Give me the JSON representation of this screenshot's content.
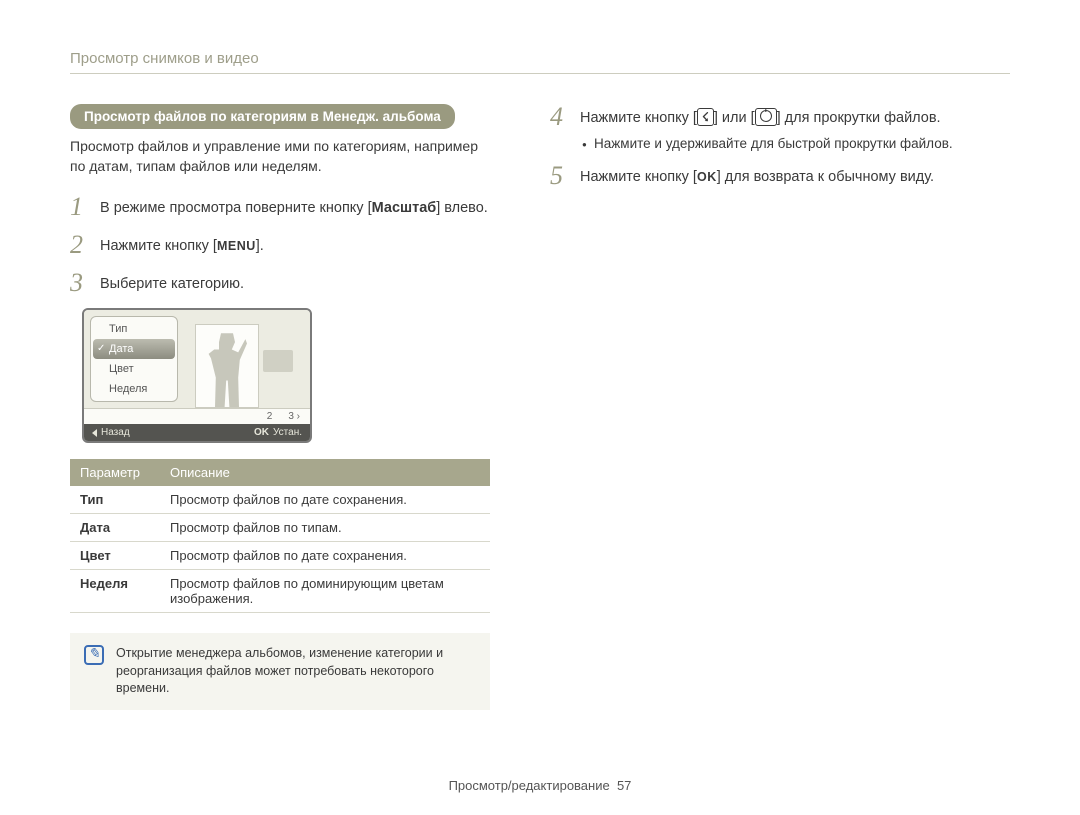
{
  "header": {
    "title": "Просмотр снимков и видео"
  },
  "section_pill": "Просмотр файлов по категориям в Менедж. альбома",
  "intro": "Просмотр файлов и управление ими по категориям, например по датам, типам файлов или неделям.",
  "steps_left": [
    {
      "num": "1",
      "pre": "В режиме просмотра поверните кнопку [",
      "bold": "Масштаб",
      "post": "] влево."
    },
    {
      "num": "2",
      "pre": "Нажмите кнопку [",
      "key": "MENU",
      "post": "]."
    },
    {
      "num": "3",
      "pre": "Выберите категорию."
    }
  ],
  "lcd": {
    "menu_items": [
      "Тип",
      "Дата",
      "Цвет",
      "Неделя"
    ],
    "selected_index": 1,
    "strip": [
      "2",
      "3"
    ],
    "footer_back": "Назад",
    "footer_ok": "OK",
    "footer_set": "Устан."
  },
  "table": {
    "headers": [
      "Параметр",
      "Описание"
    ],
    "rows": [
      [
        "Тип",
        "Просмотр файлов по дате сохранения."
      ],
      [
        "Дата",
        "Просмотр файлов по типам."
      ],
      [
        "Цвет",
        "Просмотр файлов по дате сохранения."
      ],
      [
        "Неделя",
        "Просмотр файлов по доминирующим цветам изображения."
      ]
    ]
  },
  "note": "Открытие менеджера альбомов, изменение категории и реорганизация файлов может потребовать некоторого времени.",
  "steps_right": [
    {
      "num": "4",
      "parts": [
        "Нажмите кнопку [",
        "FLASH",
        "] или [",
        "TIMER",
        "] для прокрутки файлов."
      ],
      "sub": "Нажмите и удерживайте для быстрой прокрутки файлов."
    },
    {
      "num": "5",
      "parts": [
        "Нажмите кнопку [",
        "OK",
        "] для возврата к обычному виду."
      ]
    }
  ],
  "footer": {
    "section": "Просмотр/редактирование",
    "page": "57"
  }
}
